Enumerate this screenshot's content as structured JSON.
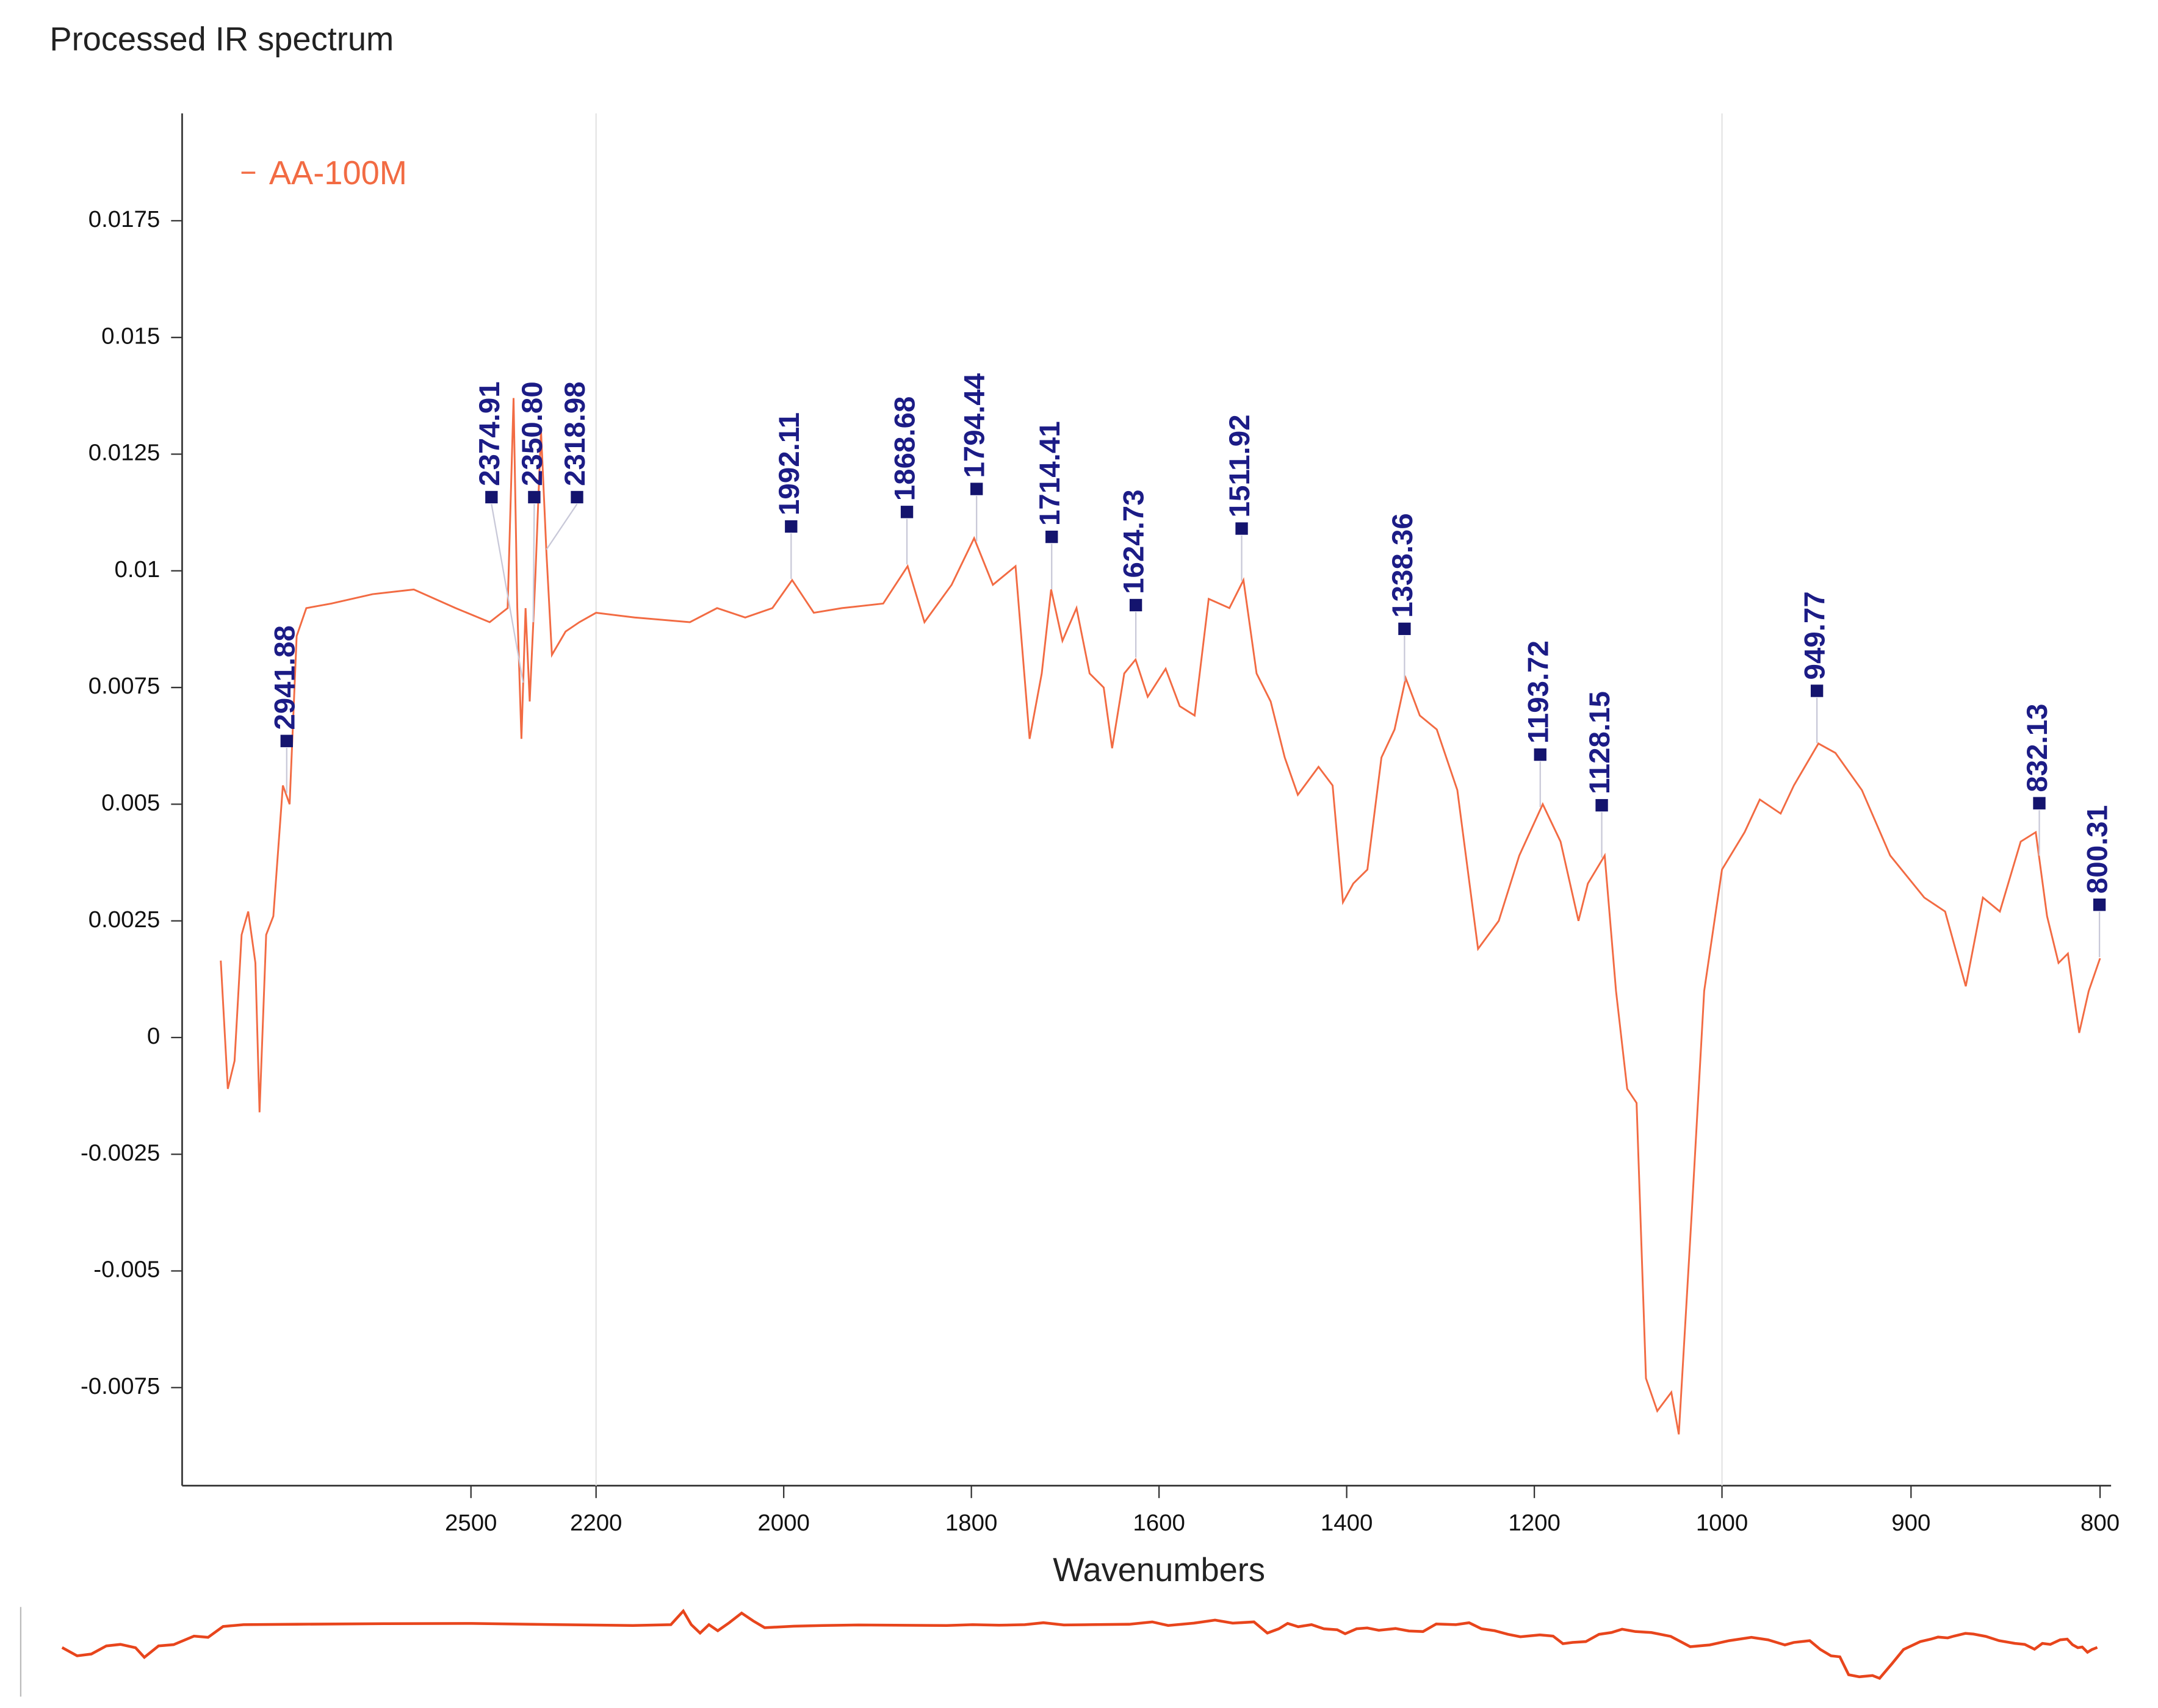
{
  "chart_data": {
    "type": "line",
    "title": "Processed IR spectrum",
    "x_label": "Wavenumbers",
    "xlim": [
      3100,
      800
    ],
    "ylim": [
      -0.0096,
      0.0198
    ],
    "xticks": [
      2500,
      2200,
      2000,
      1800,
      1600,
      1400,
      1200,
      1000,
      900,
      800
    ],
    "yticks": [
      0.0175,
      0.015,
      0.0125,
      0.01,
      0.0075,
      0.005,
      0.0025,
      0,
      -0.0025,
      -0.005,
      -0.0075
    ],
    "x_gridlines": [
      2200,
      1000
    ],
    "series": [
      {
        "name": "AA-100M",
        "color": "#f26b43",
        "x": [
          3100,
          3083,
          3067,
          3050,
          3034,
          3017,
          3007,
          2991,
          2974,
          2951,
          2935,
          2918,
          2895,
          2835,
          2736,
          2637,
          2537,
          2455,
          2412,
          2398,
          2389,
          2379,
          2369,
          2359,
          2346,
          2332,
          2319,
          2306,
          2273,
          2240,
          2200,
          2159,
          2100,
          2071,
          2041,
          2012,
          1991,
          1968,
          1938,
          1894,
          1868,
          1850,
          1821,
          1797,
          1777,
          1753,
          1738,
          1725,
          1715,
          1703,
          1688,
          1674,
          1659,
          1650,
          1637,
          1625,
          1612,
          1593,
          1578,
          1562,
          1547,
          1525,
          1510,
          1496,
          1481,
          1466,
          1452,
          1430,
          1415,
          1404,
          1393,
          1378,
          1363,
          1349,
          1337,
          1322,
          1304,
          1282,
          1260,
          1238,
          1216,
          1191,
          1172,
          1153,
          1143,
          1125,
          1113,
          1101,
          1091,
          1081,
          1069,
          1054,
          1046,
          1032,
          1019,
          1000,
          988,
          980,
          969,
          962,
          949,
          940,
          926,
          911,
          893,
          882,
          871,
          862,
          853,
          842,
          834,
          828,
          822,
          817,
          811,
          806,
          800
        ],
        "values": [
          0.00165,
          -0.0011,
          -0.0005,
          0.0022,
          0.0027,
          0.0016,
          -0.0016,
          0.0022,
          0.0026,
          0.0054,
          0.005,
          0.0086,
          0.0092,
          0.0093,
          0.0095,
          0.0096,
          0.0092,
          0.0089,
          0.0092,
          0.0137,
          0.0092,
          0.0064,
          0.0092,
          0.0072,
          0.0098,
          0.013,
          0.0104,
          0.0082,
          0.0087,
          0.0089,
          0.0091,
          0.009,
          0.0089,
          0.0092,
          0.009,
          0.0092,
          0.0098,
          0.0091,
          0.0092,
          0.0093,
          0.0101,
          0.0089,
          0.0097,
          0.0107,
          0.0097,
          0.0101,
          0.0064,
          0.0078,
          0.0096,
          0.0085,
          0.0092,
          0.0078,
          0.0075,
          0.0062,
          0.0078,
          0.0081,
          0.0073,
          0.0079,
          0.0071,
          0.0069,
          0.0094,
          0.0092,
          0.0098,
          0.0078,
          0.0072,
          0.006,
          0.0052,
          0.0058,
          0.0054,
          0.0029,
          0.0033,
          0.0036,
          0.006,
          0.0066,
          0.0077,
          0.0069,
          0.0066,
          0.0053,
          0.0019,
          0.0025,
          0.0039,
          0.005,
          0.0042,
          0.0025,
          0.0033,
          0.0039,
          0.001,
          -0.0011,
          -0.0014,
          -0.0073,
          -0.008,
          -0.0076,
          -0.0085,
          -0.0037,
          0.001,
          0.0036,
          0.0044,
          0.0051,
          0.0048,
          0.0054,
          0.0063,
          0.0061,
          0.0053,
          0.0039,
          0.003,
          0.0027,
          0.0011,
          0.003,
          0.0027,
          0.0042,
          0.0044,
          0.0026,
          0.0016,
          0.0018,
          0.0001,
          0.001,
          0.0017
        ]
      }
    ],
    "peaks": [
      2941.88,
      2374.91,
      {
        "value": 2350.8,
        "label": "2350.80"
      },
      2318.98,
      1992.11,
      1868.68,
      1794.44,
      1714.41,
      1624.73,
      1511.92,
      1338.36,
      1193.72,
      1128.15,
      949.77,
      832.13,
      800.31
    ]
  }
}
